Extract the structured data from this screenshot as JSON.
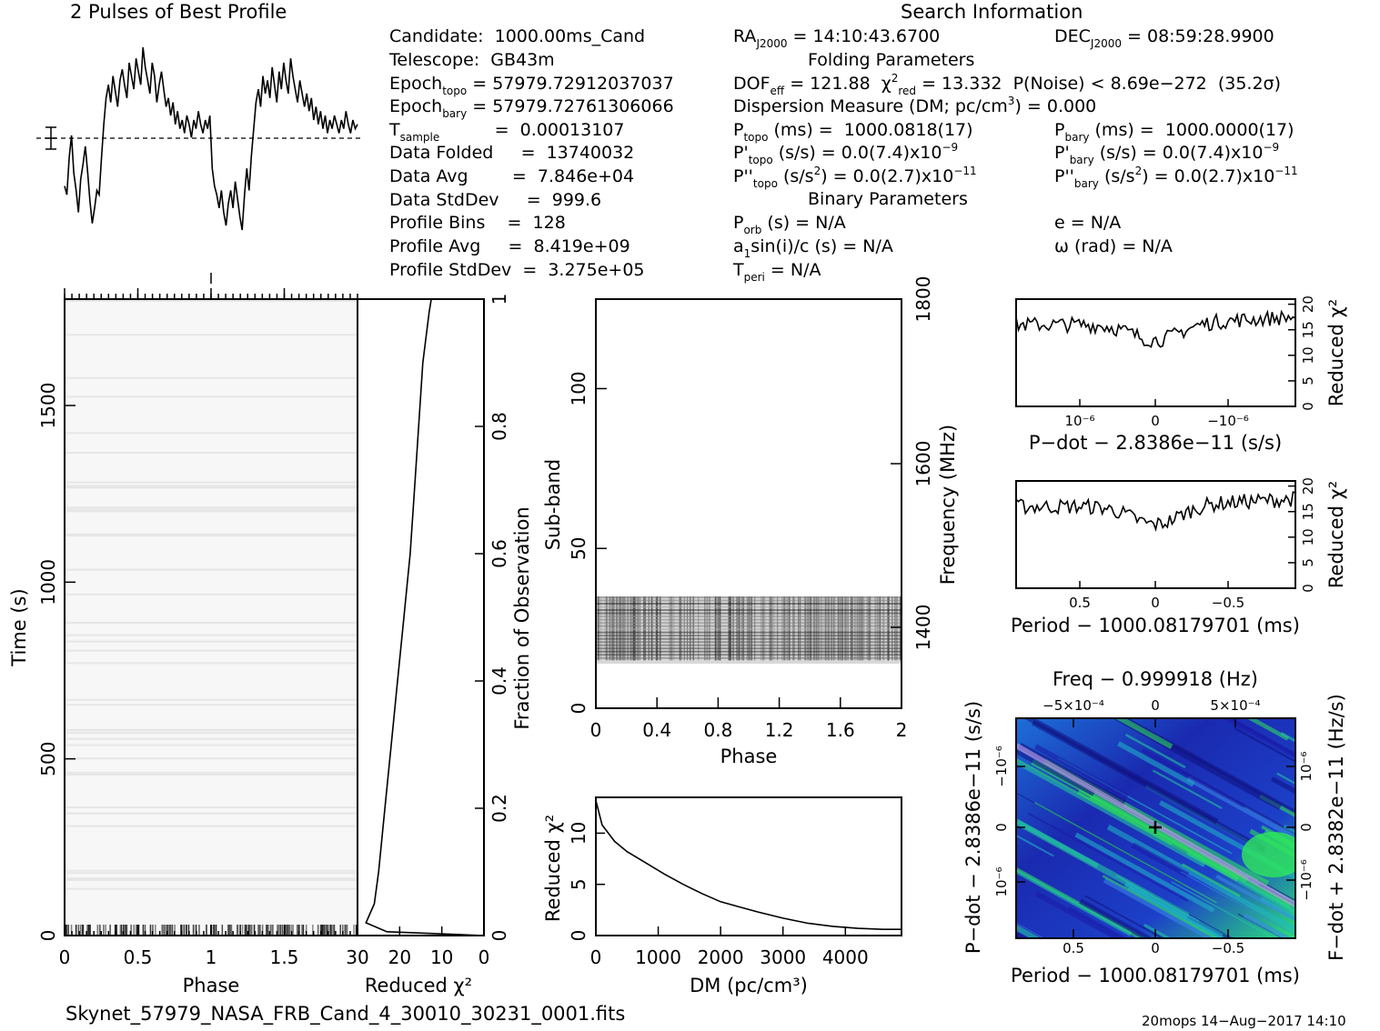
{
  "header": {
    "profile_title": "2 Pulses of Best Profile",
    "search_title": "Search Information",
    "folding_title": "Folding Parameters",
    "binary_title": "Binary Parameters"
  },
  "info": {
    "candidate": "Candidate:  1000.00ms_Cand",
    "telescope": "Telescope:  GB43m",
    "epoch_topo": {
      "pre": "Epoch",
      "sub": "topo",
      "post": " = 57979.72912037037"
    },
    "epoch_bary": {
      "pre": "Epoch",
      "sub": "bary",
      "post": " = 57979.72761306066"
    },
    "t_sample": {
      "pre": "T",
      "sub": "sample",
      "post": "          =  0.00013107"
    },
    "data_folded": "Data Folded     =  13740032",
    "data_avg": "Data Avg        =  7.846e+04",
    "data_stddev": "Data StdDev     =  999.6",
    "profile_bins": "Profile Bins    =  128",
    "profile_avg": "Profile Avg     =  8.419e+09",
    "profile_stddev": "Profile StdDev  =  3.275e+05"
  },
  "search": {
    "ra": {
      "pre": "RA",
      "sub": "J2000",
      "post": " = 14:10:43.6700"
    },
    "dec": {
      "pre": "DEC",
      "sub": "J2000",
      "post": " = 08:59:28.9900"
    },
    "dof": {
      "pre": "DOF",
      "sub": "eff",
      "post": " = 121.88  "
    },
    "chi": {
      "pre": "χ",
      "sup": "2",
      "sub": "red",
      "post": " = 13.332  P(Noise) < 8.69e−272  (35.2σ)"
    },
    "dm": {
      "pre": "Dispersion Measure (DM; pc/cm",
      "sup": "3",
      "post": ") = 0.000"
    },
    "p_topo": {
      "pre": "P",
      "sub": "topo",
      "post": " (ms) =  1000.0818(17)"
    },
    "pd_topo": {
      "pre": "P'",
      "sub": "topo",
      "post": " (s/s) = 0.0(7.4)x10",
      "sup": "−9"
    },
    "pdd_topo": {
      "pre": "P''",
      "sub": "topo",
      "post": " (s/s",
      "sup1": "2",
      "post2": ") = 0.0(2.7)x10",
      "sup": "−11"
    },
    "p_bary": {
      "pre": "P",
      "sub": "bary",
      "post": " (ms) =  1000.0000(17)"
    },
    "pd_bary": {
      "pre": "P'",
      "sub": "bary",
      "post": " (s/s) = 0.0(7.4)x10",
      "sup": "−9"
    },
    "pdd_bary": {
      "pre": "P''",
      "sub": "bary",
      "post": " (s/s",
      "sup1": "2",
      "post2": ") = 0.0(2.7)x10",
      "sup": "−11"
    },
    "p_orb": {
      "pre": "P",
      "sub": "orb",
      "post": " (s) = N/A"
    },
    "a1": {
      "pre": "a",
      "sub": "1",
      "post": "sin(i)/c (s) = N/A"
    },
    "t_peri": {
      "pre": "T",
      "sub": "peri",
      "post": " = N/A"
    },
    "e": "e = N/A",
    "omega": "ω (rad) = N/A"
  },
  "footer": {
    "filename": "Skynet_57979_NASA_FRB_Cand_4_30010_30231_0001.fits",
    "stamp": "20mops 14−Aug−2017 14:10"
  },
  "colors": {
    "ink": "#000000",
    "cmap_low": "#1a1aa8",
    "cmap_mid": "#1fb8c8",
    "cmap_high": "#2ee85a",
    "cmap_peak": "#c8a0e8"
  },
  "chart_data": [
    {
      "id": "profile",
      "type": "line",
      "title": "2 Pulses of Best Profile",
      "xlabel": "",
      "ylabel": "",
      "x_range": [
        0,
        2
      ],
      "description_values": "profile with dips near phase 0, 0.15 and 1.0, 1.15; baseline dashed line at mean",
      "y": [
        0.32,
        0.28,
        0.45,
        0.55,
        0.38,
        0.3,
        0.2,
        0.35,
        0.42,
        0.5,
        0.38,
        0.25,
        0.15,
        0.22,
        0.3,
        0.28,
        0.45,
        0.6,
        0.72,
        0.78,
        0.7,
        0.82,
        0.75,
        0.68,
        0.8,
        0.85,
        0.78,
        0.72,
        0.88,
        0.82,
        0.76,
        0.9,
        0.84,
        0.78,
        0.95,
        0.86,
        0.8,
        0.74,
        0.88,
        0.82,
        0.7,
        0.78,
        0.84,
        0.76,
        0.68,
        0.72,
        0.64,
        0.7,
        0.6,
        0.66,
        0.58,
        0.62,
        0.56,
        0.64,
        0.6,
        0.54,
        0.62,
        0.58,
        0.66,
        0.6,
        0.56,
        0.62,
        0.58,
        0.64,
        0.4,
        0.32,
        0.28,
        0.22,
        0.3,
        0.2,
        0.14,
        0.24,
        0.3,
        0.22,
        0.34,
        0.26,
        0.18,
        0.12,
        0.28,
        0.4,
        0.3,
        0.46,
        0.58,
        0.7,
        0.76,
        0.68,
        0.82,
        0.74,
        0.8,
        0.72,
        0.86,
        0.78,
        0.7,
        0.84,
        0.76,
        0.88,
        0.8,
        0.74,
        0.9,
        0.82,
        0.76,
        0.7,
        0.8,
        0.74,
        0.68,
        0.74,
        0.66,
        0.72,
        0.62,
        0.68,
        0.6,
        0.66,
        0.58,
        0.64,
        0.56,
        0.62,
        0.58,
        0.64,
        0.6,
        0.56,
        0.62,
        0.58,
        0.66,
        0.6,
        0.56,
        0.62,
        0.58,
        0.6
      ]
    },
    {
      "id": "time_phase",
      "type": "heatmap",
      "xlabel": "Phase",
      "ylabel": "Time (s)",
      "x_ticks": [
        "0",
        "0.5",
        "1",
        "1.5"
      ],
      "x_tick_values": [
        0,
        0.5,
        1,
        1.5
      ],
      "y_ticks": [
        "0",
        "500",
        "1000",
        "1500"
      ],
      "y_tick_values": [
        0,
        500,
        1000,
        1500
      ],
      "x_range": [
        0,
        2
      ],
      "y_range": [
        0,
        1801
      ]
    },
    {
      "id": "time_chi",
      "type": "line",
      "xlabel": "Reduced χ²",
      "ylabel": "Fraction of Observation",
      "x_ticks": [
        "30",
        "20",
        "10",
        "0"
      ],
      "x_tick_values": [
        30,
        20,
        10,
        0
      ],
      "y_ticks": [
        "0",
        "0.2",
        "0.4",
        "0.6",
        "0.8",
        "1"
      ],
      "y_tick_values": [
        0,
        0.2,
        0.4,
        0.6,
        0.8,
        1
      ],
      "x_range": [
        30,
        0
      ],
      "y_range": [
        0,
        1
      ],
      "points": [
        [
          0,
          0
        ],
        [
          23,
          0.006
        ],
        [
          28,
          0.02
        ],
        [
          26,
          0.05
        ],
        [
          25,
          0.1
        ],
        [
          23.5,
          0.2
        ],
        [
          22,
          0.3
        ],
        [
          20.5,
          0.4
        ],
        [
          19,
          0.5
        ],
        [
          17.5,
          0.6
        ],
        [
          16.5,
          0.7
        ],
        [
          15.5,
          0.8
        ],
        [
          14.5,
          0.9
        ],
        [
          13,
          0.98
        ],
        [
          12.5,
          1
        ]
      ]
    },
    {
      "id": "subband_phase",
      "type": "heatmap",
      "xlabel": "Phase",
      "ylabel": "Sub-band",
      "y2label": "Frequency (MHz)",
      "x_ticks": [
        "0",
        "0.4",
        "0.8",
        "1.2",
        "1.6",
        "2"
      ],
      "x_tick_values": [
        0,
        0.4,
        0.8,
        1.2,
        1.6,
        2
      ],
      "y_ticks": [
        "0",
        "50",
        "100"
      ],
      "y_tick_values": [
        0,
        50,
        100
      ],
      "y2_ticks": [
        "1400",
        "1600",
        "1800"
      ],
      "x_range": [
        0,
        2
      ],
      "y_range": [
        0,
        128
      ],
      "band_range": [
        15,
        35
      ]
    },
    {
      "id": "dm_chi",
      "type": "line",
      "xlabel": "DM (pc/cm³)",
      "ylabel": "Reduced χ²",
      "x_ticks": [
        "0",
        "1000",
        "2000",
        "3000",
        "4000"
      ],
      "x_tick_values": [
        0,
        1000,
        2000,
        3000,
        4000
      ],
      "y_ticks": [
        "0",
        "5",
        "10"
      ],
      "y_tick_values": [
        0,
        5,
        10
      ],
      "x_range": [
        0,
        4900
      ],
      "y_range": [
        0,
        13.5
      ],
      "points": [
        [
          0,
          13.2
        ],
        [
          100,
          10.8
        ],
        [
          300,
          9.2
        ],
        [
          500,
          8.2
        ],
        [
          800,
          7.1
        ],
        [
          1100,
          6.0
        ],
        [
          1400,
          5.0
        ],
        [
          1700,
          4.1
        ],
        [
          2000,
          3.3
        ],
        [
          2300,
          2.8
        ],
        [
          2600,
          2.3
        ],
        [
          3000,
          1.7
        ],
        [
          3400,
          1.2
        ],
        [
          3800,
          0.9
        ],
        [
          4200,
          0.7
        ],
        [
          4600,
          0.6
        ],
        [
          4900,
          0.6
        ]
      ]
    },
    {
      "id": "pdot_chi",
      "type": "line",
      "xlabel": "P−dot − 2.8386e−11 (s/s)",
      "ylabel": "Reduced χ²",
      "x_ticks": [
        "10⁻⁶",
        "0",
        "−10⁻⁶"
      ],
      "y_ticks": [
        "0",
        "5",
        "10",
        "15",
        "20"
      ],
      "y_tick_values": [
        0,
        5,
        10,
        15,
        20
      ],
      "y_range": [
        0,
        21
      ]
    },
    {
      "id": "period_chi",
      "type": "line",
      "xlabel": "Period − 1000.08179701 (ms)",
      "ylabel": "Reduced χ²",
      "x_ticks": [
        "0.5",
        "0",
        "−0.5"
      ],
      "y_ticks": [
        "0",
        "5",
        "10",
        "15",
        "20"
      ],
      "y_tick_values": [
        0,
        5,
        10,
        15,
        20
      ],
      "y_range": [
        0,
        21
      ]
    },
    {
      "id": "pp_plane",
      "type": "heatmap",
      "title": "Freq − 0.999918 (Hz)",
      "xlabel": "Period − 1000.08179701 (ms)",
      "ylabel": "P−dot − 2.8386e−11 (s/s)",
      "y2label": "F−dot + 2.8382e−11 (Hz/s)",
      "x_ticks": [
        "0.5",
        "0",
        "−0.5"
      ],
      "x2_ticks": [
        "−5×10⁻⁴",
        "0",
        "5×10⁻⁴"
      ],
      "y_ticks": [
        "10⁻⁶",
        "0",
        "−10⁻⁶"
      ],
      "y2_ticks": [
        "−10⁻⁶",
        "0",
        "10⁻⁶"
      ]
    }
  ]
}
